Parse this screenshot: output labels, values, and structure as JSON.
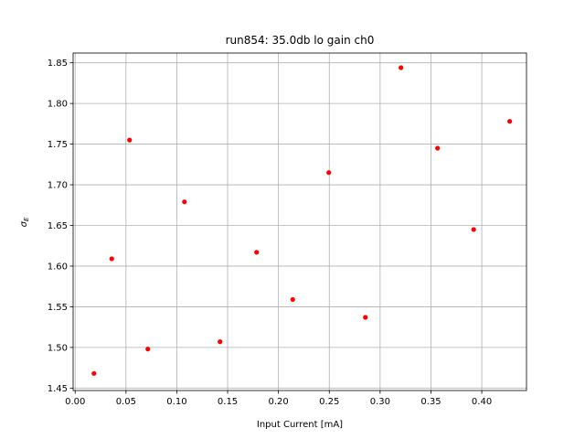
{
  "chart_data": {
    "type": "scatter",
    "title": "run854: 35.0db lo gain ch0",
    "xlabel": "Input Current [mA]",
    "ylabel": "σ_E",
    "xlim": [
      -0.002,
      0.444
    ],
    "ylim": [
      1.447,
      1.862
    ],
    "grid": true,
    "marker_color": "#ff0000",
    "x_ticks": [
      0.0,
      0.05,
      0.1,
      0.15,
      0.2,
      0.25,
      0.3,
      0.35,
      0.4
    ],
    "x_tick_labels": [
      "0.00",
      "0.05",
      "0.10",
      "0.15",
      "0.20",
      "0.25",
      "0.30",
      "0.35",
      "0.40"
    ],
    "y_ticks": [
      1.45,
      1.5,
      1.55,
      1.6,
      1.65,
      1.7,
      1.75,
      1.8,
      1.85
    ],
    "y_tick_labels": [
      "1.45",
      "1.50",
      "1.55",
      "1.60",
      "1.65",
      "1.70",
      "1.75",
      "1.80",
      "1.85"
    ],
    "x": [
      0.0185,
      0.036,
      0.0535,
      0.0715,
      0.1075,
      0.1425,
      0.1785,
      0.214,
      0.2495,
      0.2855,
      0.3205,
      0.3565,
      0.392,
      0.4275
    ],
    "y": [
      1.468,
      1.609,
      1.755,
      1.498,
      1.679,
      1.507,
      1.617,
      1.559,
      1.715,
      1.537,
      1.844,
      1.745,
      1.645,
      1.778
    ]
  }
}
